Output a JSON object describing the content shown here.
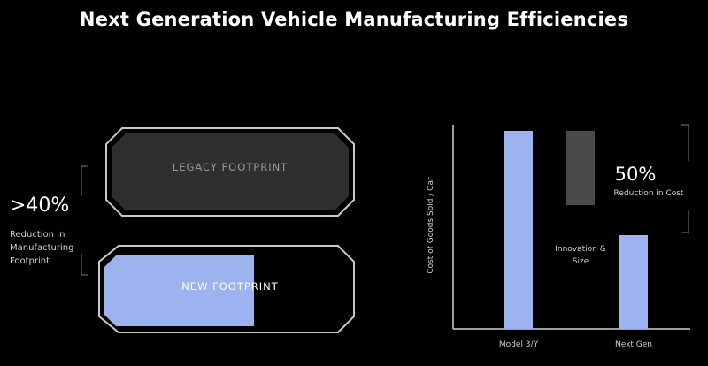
{
  "title": "Next Generation Vehicle Manufacturing Efficiencies",
  "footprint": {
    "stat": ">40%",
    "desc": [
      "Reduction In",
      "Manufacturing",
      "Footprint"
    ],
    "legacy_label": "LEGACY FOOTPRINT",
    "new_label": "NEW FOOTPRINT",
    "new_fraction": 0.57
  },
  "colors": {
    "blue": "#9db3f0",
    "gray": "#4a4a4a",
    "legacy_fill": "#2f2f2f",
    "outline": "#c9c9c9"
  },
  "chart_data": {
    "type": "bar",
    "ylabel": "Cost of Goods Sold / Car",
    "categories": [
      "Model 3/Y",
      "Next Gen"
    ],
    "values": [
      100,
      50
    ],
    "ylim": [
      0,
      110
    ],
    "waterfall_step": {
      "label": [
        "Innovation &",
        "Size"
      ],
      "from": 100,
      "to": 50
    },
    "annotation": {
      "value": "50%",
      "text": "Reduction in Cost"
    }
  }
}
